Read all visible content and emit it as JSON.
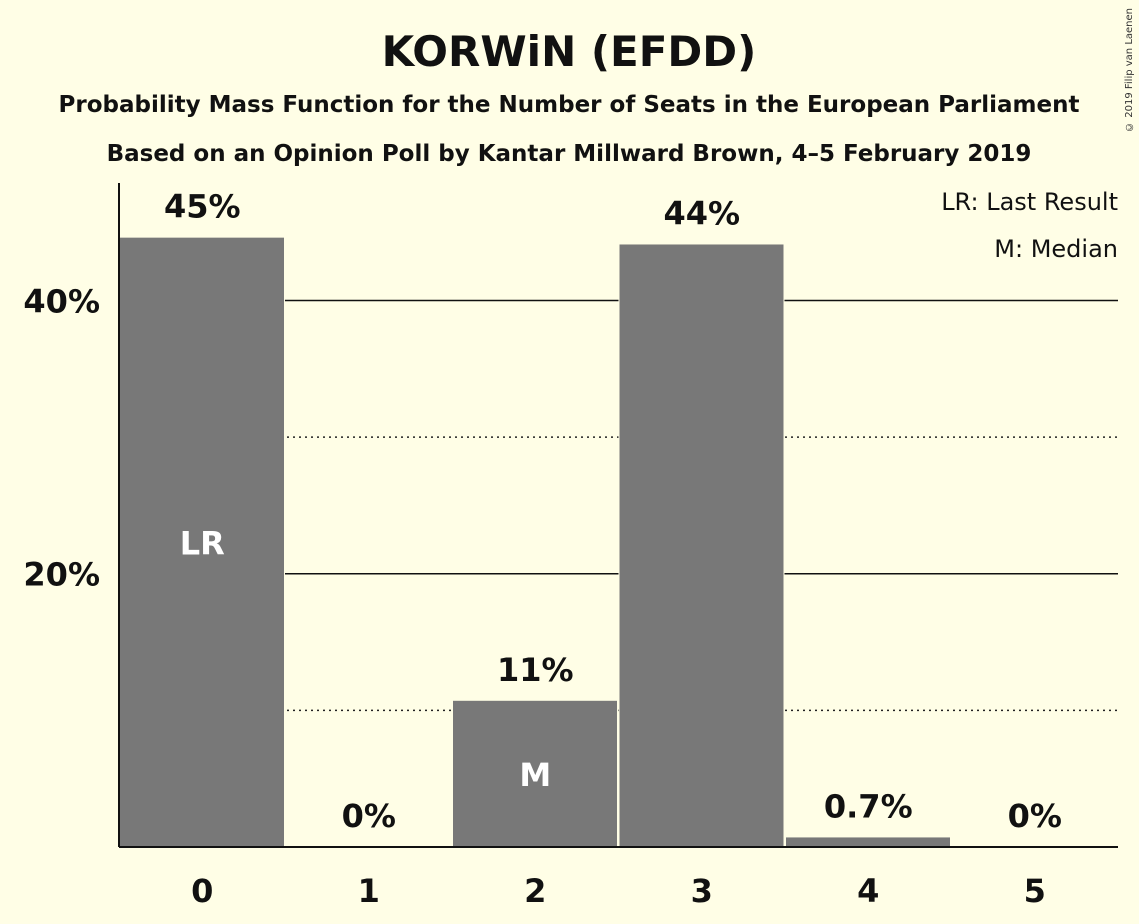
{
  "copyright": "© 2019 Filip van Laenen",
  "chart_data": {
    "type": "bar",
    "title": "KORWiN (EFDD)",
    "subtitle": "Probability Mass Function for the Number of Seats in the European Parliament",
    "subtitle2": "Based on an Opinion Poll by Kantar Millward Brown, 4–5 February 2019",
    "categories": [
      "0",
      "1",
      "2",
      "3",
      "4",
      "5"
    ],
    "values": [
      44.6,
      0,
      10.7,
      44.1,
      0.7,
      0
    ],
    "value_labels": [
      "45%",
      "0%",
      "11%",
      "44%",
      "0.7%",
      "0%"
    ],
    "bar_marks": [
      "LR",
      "",
      "M",
      "",
      "",
      ""
    ],
    "ylim": [
      0,
      48.6
    ],
    "yticks": [
      20,
      40
    ],
    "ytick_labels": [
      "20%",
      "40%"
    ],
    "minor_gridlines": [
      10,
      30
    ],
    "legend": [
      "LR: Last Result",
      "M: Median"
    ],
    "legend_position": "top-right",
    "bar_color": "#787878",
    "background": "#FFFEE6"
  }
}
